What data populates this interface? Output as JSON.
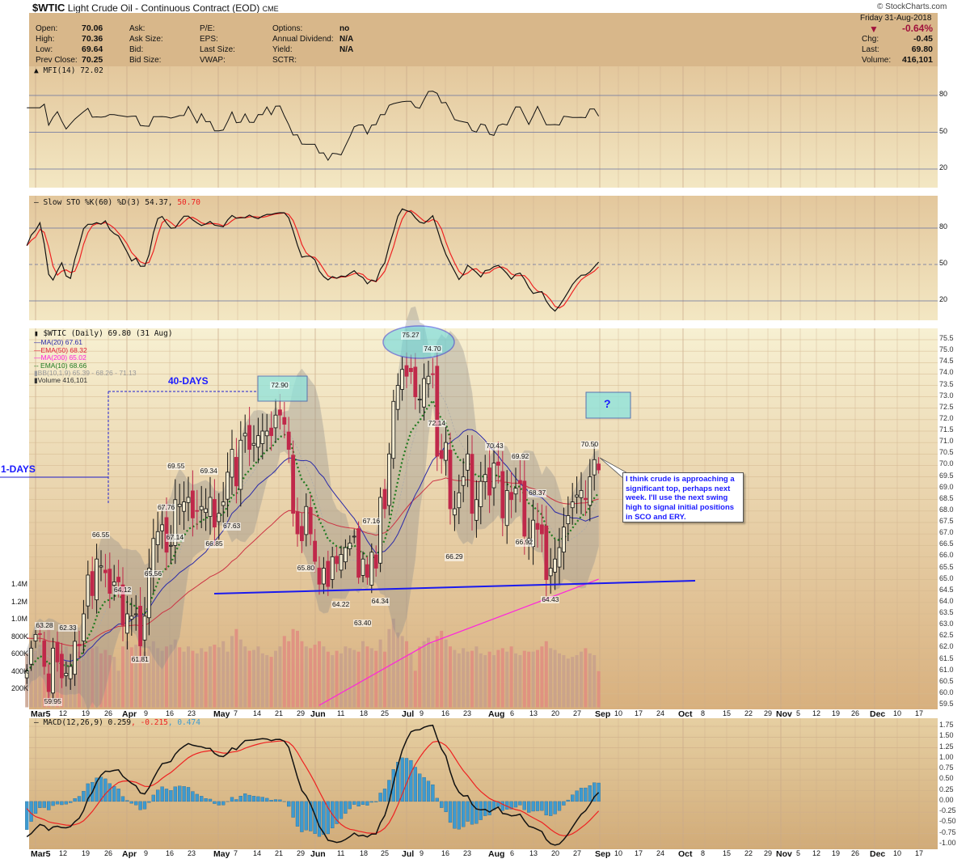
{
  "header": {
    "symbol": "$WTIC",
    "name": "Light Crude Oil - Continuous Contract (EOD)",
    "exchange": "CME",
    "copyright": "© StockCharts.com",
    "fields": [
      {
        "label": "Open:",
        "value": "70.06"
      },
      {
        "label": "High:",
        "value": "70.36"
      },
      {
        "label": "Low:",
        "value": "69.64"
      },
      {
        "label": "Prev Close:",
        "value": "70.25"
      }
    ],
    "fields2": [
      "Ask:",
      "Ask Size:",
      "Bid:",
      "Bid Size:"
    ],
    "fields3": [
      "P/E:",
      "EPS:",
      "Last Size:",
      "VWAP:"
    ],
    "fields4": [
      {
        "label": "Options:",
        "value": "no"
      },
      {
        "label": "Annual Dividend:",
        "value": "N/A"
      },
      {
        "label": "Yield:",
        "value": "N/A"
      },
      {
        "label": "SCTR:",
        "value": ""
      }
    ],
    "date": "Friday  31-Aug-2018",
    "pct_change": "-0.64%",
    "chg_label": "Chg:",
    "chg": "-0.45",
    "last_label": "Last:",
    "last": "69.80",
    "volume_label": "Volume:",
    "volume": "416,101",
    "down_color": "#a0103c"
  },
  "chart_data": {
    "type": "candlestick",
    "period": "Daily",
    "price_axis": {
      "min": 59.5,
      "max": 75.5,
      "step": 0.5
    },
    "volume_axis": {
      "labels": [
        "1.4M",
        "1.2M",
        "1.0M",
        "800K",
        "600K",
        "400K",
        "200K"
      ],
      "values": [
        1400000,
        1200000,
        1000000,
        800000,
        600000,
        400000,
        200000
      ]
    },
    "x_ticks": [
      "Mar5",
      "12",
      "19",
      "26",
      "Apr",
      "9",
      "16",
      "23",
      "May",
      "7",
      "14",
      "21",
      "29",
      "Jun",
      "11",
      "18",
      "25",
      "Jul",
      "9",
      "16",
      "23",
      "Aug",
      "6",
      "13",
      "20",
      "27",
      "Sep",
      "10",
      "17",
      "24",
      "Oct",
      "8",
      "15",
      "22",
      "29",
      "Nov",
      "5",
      "12",
      "19",
      "26",
      "Dec",
      "10",
      "17"
    ],
    "x_ticks_bold": [
      "Mar",
      "Apr",
      "May",
      "Jun",
      "Jul",
      "Aug",
      "Sep",
      "Oct",
      "Nov",
      "Dec"
    ],
    "closes": [
      61.0,
      62.0,
      62.6,
      62.6,
      61.2,
      60.1,
      62.0,
      61.4,
      60.7,
      60.9,
      61.2,
      62.3,
      62.1,
      63.5,
      65.2,
      64.3,
      65.9,
      65.6,
      65.3,
      64.4,
      64.9,
      64.9,
      63.0,
      63.5,
      63.4,
      63.5,
      62.1,
      63.4,
      65.5,
      66.8,
      67.1,
      67.4,
      66.2,
      66.5,
      68.5,
      68.3,
      68.4,
      68.6,
      67.7,
      68.0,
      68.2,
      68.1,
      68.6,
      67.3,
      67.9,
      68.4,
      69.7,
      70.7,
      69.1,
      71.1,
      71.4,
      70.7,
      70.96,
      71.3,
      71.5,
      71.5,
      71.3,
      72.2,
      72.2,
      71.8,
      70.7,
      67.9,
      67.0,
      66.7,
      68.2,
      67.0,
      65.8,
      64.8,
      65.5,
      64.7,
      66.0,
      65.7,
      66.1,
      66.4,
      66.6,
      66.9,
      65.1,
      65.9,
      65.1,
      66.2,
      65.5,
      68.6,
      68.1,
      70.5,
      72.8,
      73.5,
      74.2,
      73.9,
      74.1,
      73.0,
      72.9,
      73.8,
      73.9,
      74.0,
      70.4,
      70.3,
      71.0,
      68.1,
      68.1,
      68.8,
      69.5,
      70.5,
      67.9,
      68.5,
      69.3,
      69.6,
      68.7,
      70.1,
      70.0,
      67.7,
      68.9,
      68.5,
      69.0,
      69.2,
      66.9,
      66.8,
      67.6,
      67.2,
      67.0,
      65.0,
      65.5,
      65.9,
      66.4,
      67.3,
      67.8,
      68.4,
      68.7,
      68.9,
      68.5,
      69.5,
      70.25,
      69.8
    ],
    "last_candle": {
      "open": 70.06,
      "high": 70.36,
      "low": 69.64,
      "close": 69.8
    },
    "volumes_k": [
      620,
      700,
      650,
      720,
      780,
      900,
      640,
      600,
      650,
      700,
      620,
      690,
      640,
      720,
      760,
      680,
      700,
      620,
      660,
      600,
      580,
      420,
      700,
      760,
      690,
      720,
      800,
      640,
      700,
      760,
      680,
      650,
      700,
      720,
      780,
      690,
      640,
      700,
      650,
      620,
      680,
      640,
      700,
      720,
      690,
      760,
      640,
      820,
      900,
      780,
      700,
      650,
      660,
      700,
      620,
      600,
      580,
      650,
      700,
      820,
      760,
      900,
      880,
      760,
      700,
      680,
      720,
      760,
      700,
      640,
      600,
      650,
      620,
      700,
      680,
      660,
      640,
      760,
      700,
      680,
      650,
      780,
      640,
      900,
      1020,
      860,
      820,
      760,
      620,
      420,
      700,
      760,
      800,
      740,
      820,
      880,
      780,
      700,
      660,
      620,
      680,
      640,
      650,
      700,
      620,
      600,
      640,
      600,
      660,
      680,
      640,
      700,
      620,
      600,
      650,
      640,
      640,
      660,
      700,
      760,
      680,
      660,
      620,
      600,
      560,
      580,
      600,
      640,
      680,
      620,
      600,
      416
    ],
    "indicators": {
      "mfi": {
        "label": "MFI(14) 72.02",
        "levels": [
          80,
          50,
          20
        ]
      },
      "sto": {
        "label": "Slow STO %K(60) %D(3) 54.37, ",
        "d_label": "50.70",
        "levels": [
          80,
          50,
          20
        ]
      },
      "price_legend": [
        {
          "label": "$WTIC (Daily) 69.80 (31 Aug)",
          "color": "#111111"
        },
        {
          "label": "MA(20) 67.61",
          "color": "#2b2ba8"
        },
        {
          "label": "EMA(50) 68.32",
          "color": "#e0203a"
        },
        {
          "label": "MA(200) 65.02",
          "color": "#ff22dd"
        },
        {
          "label": "EMA(10) 68.66",
          "color": "#1f7a1f"
        },
        {
          "label": "BB(10,1.9) 65.39 - 68.26 - 71.13",
          "color": "#999999"
        },
        {
          "label": "Volume 416,101",
          "color": "#333333"
        }
      ],
      "ma200": [
        {
          "date": "2018-06-04",
          "v": 59.5
        },
        {
          "date": "2018-07-09",
          "v": 62.2
        },
        {
          "date": "2018-08-31",
          "v": 65.02
        }
      ],
      "macd": {
        "label": "MACD(12,26,9) 0.259",
        "signal_label": ", -0.215",
        "hist_label": ", 0.474",
        "axis": [
          "1.75",
          "1.50",
          "1.25",
          "1.00",
          "0.75",
          "0.50",
          "0.25",
          "0.00",
          "-0.25",
          "-0.50",
          "-0.75",
          "-1.00"
        ]
      }
    },
    "price_labels": [
      {
        "date": "2018-03-06",
        "value": "63.28",
        "pos": "below"
      },
      {
        "date": "2018-03-13",
        "value": "62.33",
        "pos": "above"
      },
      {
        "date": "2018-03-09",
        "value": "59.95",
        "pos": "below"
      },
      {
        "date": "2018-03-26",
        "value": "66.55",
        "pos": "above"
      },
      {
        "date": "2018-04-02",
        "value": "64.12",
        "pos": "above"
      },
      {
        "date": "2018-04-06",
        "value": "61.81",
        "pos": "below"
      },
      {
        "date": "2018-04-11",
        "value": "65.56",
        "pos": "below"
      },
      {
        "date": "2018-04-19",
        "value": "69.55",
        "pos": "above"
      },
      {
        "date": "2018-04-16",
        "value": "67.76",
        "pos": "above"
      },
      {
        "date": "2018-04-18",
        "value": "67.14",
        "pos": "below"
      },
      {
        "date": "2018-04-27",
        "value": "69.34",
        "pos": "above"
      },
      {
        "date": "2018-05-01",
        "value": "66.85",
        "pos": "below"
      },
      {
        "date": "2018-05-07",
        "value": "67.63",
        "pos": "below"
      },
      {
        "date": "2018-05-30",
        "value": "65.80",
        "pos": "below"
      },
      {
        "date": "2018-06-11",
        "value": "64.22",
        "pos": "below"
      },
      {
        "date": "2018-06-20",
        "value": "67.16",
        "pos": "above"
      },
      {
        "date": "2018-06-18",
        "value": "63.40",
        "pos": "below"
      },
      {
        "date": "2018-06-22",
        "value": "64.34",
        "pos": "below"
      },
      {
        "date": "2018-07-11",
        "value": "72.14",
        "pos": "below"
      },
      {
        "date": "2018-07-17",
        "value": "66.29",
        "pos": "below"
      },
      {
        "date": "2018-07-31",
        "value": "70.43",
        "pos": "above"
      },
      {
        "date": "2018-08-06",
        "value": "69.92",
        "pos": "above"
      },
      {
        "date": "2018-08-08",
        "value": "66.92",
        "pos": "below"
      },
      {
        "date": "2018-08-13",
        "value": "68.37",
        "pos": "above"
      },
      {
        "date": "2018-08-16",
        "value": "64.43",
        "pos": "below"
      },
      {
        "date": "2018-08-29",
        "value": "70.50",
        "pos": "above"
      },
      {
        "date": "2018-05-22",
        "value": "72.90",
        "pos": "boxed"
      },
      {
        "date": "2018-07-03",
        "value": "75.27",
        "pos": "above"
      },
      {
        "date": "2018-07-10",
        "value": "74.70",
        "pos": "above"
      }
    ],
    "annotations": {
      "forty_days": "40-DAYS",
      "one_days": "1-DAYS",
      "question": "?",
      "callout": "I think crude is approaching a significant top, perhaps next week. I'll use the next swing high to signal initial positions in SCO and ERY.",
      "color": "#1a1aff"
    }
  }
}
